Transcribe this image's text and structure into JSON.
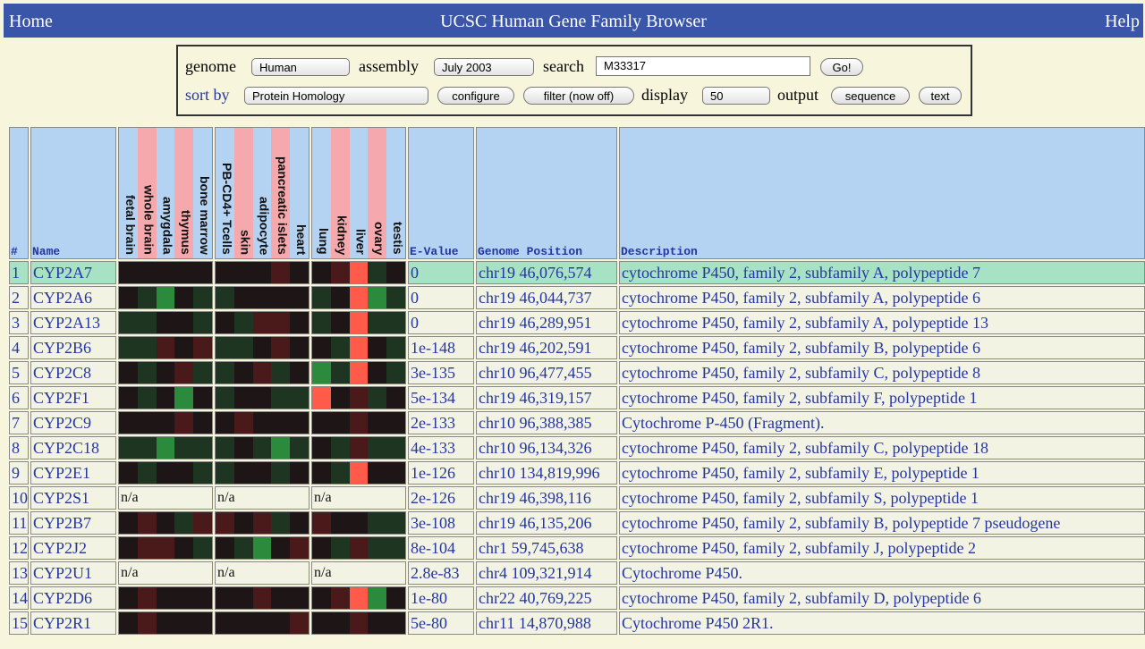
{
  "header": {
    "home": "Home",
    "title": "UCSC Human Gene Family Browser",
    "help": "Help"
  },
  "controls": {
    "genome_label": "genome",
    "genome": "Human",
    "assembly_label": "assembly",
    "assembly": "July 2003",
    "search_label": "search",
    "search": "M33317",
    "go": "Go!",
    "sort_label": "sort by",
    "sort": "Protein Homology",
    "configure": "configure",
    "filter": "filter (now off)",
    "display_label": "display",
    "display": "50",
    "output_label": "output",
    "sequence": "sequence",
    "text": "text"
  },
  "table": {
    "columns": [
      "#",
      "Name",
      "E-Value",
      "Genome Position",
      "Description"
    ],
    "tissues": [
      [
        "fetal brain",
        "whole brain",
        "amygdala",
        "thymus",
        "bone marrow"
      ],
      [
        "PB-CD4+ Tcells",
        "skin",
        "adipocyte",
        "pancreatic islets",
        "heart"
      ],
      [
        "lung",
        "kidney",
        "liver",
        "ovary",
        "testis"
      ]
    ],
    "rows": [
      {
        "num": "1",
        "name": "CYP2A7",
        "expression": [
          [
            "#1e1616",
            "#1e1616",
            "#1e1616",
            "#1e1616",
            "#1e1616"
          ],
          [
            "#1e1616",
            "#1e1616",
            "#1e1616",
            "#4a1a1a",
            "#1e1616"
          ],
          [
            "#1e1616",
            "#4a1a1a",
            "#ff5a4a",
            "#1e3522",
            "#1e1616"
          ]
        ],
        "evalue": "0",
        "position": "chr19 46,076,574",
        "description": "cytochrome P450, family 2, subfamily A, polypeptide 7"
      },
      {
        "num": "2",
        "name": "CYP2A6",
        "expression": [
          [
            "#1e1616",
            "#1e3522",
            "#2c8a3c",
            "#1e1616",
            "#1e3522"
          ],
          [
            "#1e3522",
            "#1e1616",
            "#1e1616",
            "#1e1616",
            "#1e1616"
          ],
          [
            "#1e3522",
            "#1e1616",
            "#ff5a4a",
            "#2c8a3c",
            "#1e3522"
          ]
        ],
        "evalue": "0",
        "position": "chr19 46,044,737",
        "description": "cytochrome P450, family 2, subfamily A, polypeptide 6"
      },
      {
        "num": "3",
        "name": "CYP2A13",
        "expression": [
          [
            "#1e3522",
            "#1e3522",
            "#1e1616",
            "#1e1616",
            "#1e3522"
          ],
          [
            "#1e1616",
            "#1e3522",
            "#4a1a1a",
            "#4a1a1a",
            "#1e1616"
          ],
          [
            "#1e3522",
            "#1e1616",
            "#ff5a4a",
            "#1e3522",
            "#1e3522"
          ]
        ],
        "evalue": "0",
        "position": "chr19 46,289,951",
        "description": "cytochrome P450, family 2, subfamily A, polypeptide 13"
      },
      {
        "num": "4",
        "name": "CYP2B6",
        "expression": [
          [
            "#1e3522",
            "#1e3522",
            "#4a1a1a",
            "#1e1616",
            "#4a1a1a"
          ],
          [
            "#1e3522",
            "#1e3522",
            "#1e1616",
            "#4a1a1a",
            "#1e1616"
          ],
          [
            "#1e1616",
            "#1e3522",
            "#ff5a4a",
            "#1e1616",
            "#1e3522"
          ]
        ],
        "evalue": "1e-148",
        "position": "chr19 46,202,591",
        "description": "cytochrome P450, family 2, subfamily B, polypeptide 6"
      },
      {
        "num": "5",
        "name": "CYP2C8",
        "expression": [
          [
            "#1e1616",
            "#1e3522",
            "#1e1616",
            "#4a1a1a",
            "#1e3522"
          ],
          [
            "#1e3522",
            "#1e1616",
            "#4a1a1a",
            "#1e3522",
            "#1e1616"
          ],
          [
            "#2c8a3c",
            "#1e3522",
            "#ff5a4a",
            "#1e1616",
            "#1e3522"
          ]
        ],
        "evalue": "3e-135",
        "position": "chr10 96,477,455",
        "description": "cytochrome P450, family 2, subfamily C, polypeptide 8"
      },
      {
        "num": "6",
        "name": "CYP2F1",
        "expression": [
          [
            "#1e1616",
            "#1e3522",
            "#1e1616",
            "#2c8a3c",
            "#1e1616"
          ],
          [
            "#1e3522",
            "#1e1616",
            "#1e1616",
            "#1e3522",
            "#1e3522"
          ],
          [
            "#ff5a4a",
            "#1e1616",
            "#4a1a1a",
            "#1e3522",
            "#1e1616"
          ]
        ],
        "evalue": "5e-134",
        "position": "chr19 46,319,157",
        "description": "cytochrome P450, family 2, subfamily F, polypeptide 1"
      },
      {
        "num": "7",
        "name": "CYP2C9",
        "expression": [
          [
            "#1e1616",
            "#1e1616",
            "#1e1616",
            "#4a1a1a",
            "#1e1616"
          ],
          [
            "#1e1616",
            "#4a1a1a",
            "#1e1616",
            "#1e1616",
            "#1e1616"
          ],
          [
            "#1e1616",
            "#1e1616",
            "#4a1a1a",
            "#1e1616",
            "#1e1616"
          ]
        ],
        "evalue": "2e-133",
        "position": "chr10 96,388,385",
        "description": "Cytochrome P-450 (Fragment)."
      },
      {
        "num": "8",
        "name": "CYP2C18",
        "expression": [
          [
            "#1e3522",
            "#1e3522",
            "#2c8a3c",
            "#1e3522",
            "#1e3522"
          ],
          [
            "#1e3522",
            "#1e1616",
            "#1e3522",
            "#2c8a3c",
            "#1e3522"
          ],
          [
            "#1e1616",
            "#1e3522",
            "#4a1a1a",
            "#1e3522",
            "#1e3522"
          ]
        ],
        "evalue": "4e-133",
        "position": "chr10 96,134,326",
        "description": "cytochrome P450, family 2, subfamily C, polypeptide 18"
      },
      {
        "num": "9",
        "name": "CYP2E1",
        "expression": [
          [
            "#1e1616",
            "#1e3522",
            "#1e1616",
            "#1e1616",
            "#1e3522"
          ],
          [
            "#1e3522",
            "#1e1616",
            "#1e1616",
            "#1e3522",
            "#1e1616"
          ],
          [
            "#1e1616",
            "#1e3522",
            "#ff5a4a",
            "#1e1616",
            "#1e1616"
          ]
        ],
        "evalue": "1e-126",
        "position": "chr10 134,819,996",
        "description": "cytochrome P450, family 2, subfamily E, polypeptide 1"
      },
      {
        "num": "10",
        "name": "CYP2S1",
        "expression": [
          "n/a",
          "n/a",
          "n/a"
        ],
        "evalue": "2e-126",
        "position": "chr19 46,398,116",
        "description": "cytochrome P450, family 2, subfamily S, polypeptide 1"
      },
      {
        "num": "11",
        "name": "CYP2B7",
        "expression": [
          [
            "#1e1616",
            "#4a1a1a",
            "#1e1616",
            "#1e3522",
            "#4a1a1a"
          ],
          [
            "#4a1a1a",
            "#1e1616",
            "#4a1a1a",
            "#1e3522",
            "#1e1616"
          ],
          [
            "#4a1a1a",
            "#1e1616",
            "#1e1616",
            "#1e3522",
            "#1e3522"
          ]
        ],
        "evalue": "3e-108",
        "position": "chr19 46,135,206",
        "description": "cytochrome P450, family 2, subfamily B, polypeptide 7 pseudogene"
      },
      {
        "num": "12",
        "name": "CYP2J2",
        "expression": [
          [
            "#1e1616",
            "#4a1a1a",
            "#4a1a1a",
            "#1e1616",
            "#1e3522"
          ],
          [
            "#1e1616",
            "#1e3522",
            "#2c8a3c",
            "#1e1616",
            "#4a1a1a"
          ],
          [
            "#1e1616",
            "#1e3522",
            "#4a1a1a",
            "#1e3522",
            "#1e3522"
          ]
        ],
        "evalue": "8e-104",
        "position": "chr1 59,745,638",
        "description": "cytochrome P450, family 2, subfamily J, polypeptide 2"
      },
      {
        "num": "13",
        "name": "CYP2U1",
        "expression": [
          "n/a",
          "n/a",
          "n/a"
        ],
        "evalue": "2.8e-83",
        "position": "chr4 109,321,914",
        "description": "Cytochrome P450."
      },
      {
        "num": "14",
        "name": "CYP2D6",
        "expression": [
          [
            "#1e1616",
            "#4a1a1a",
            "#1e1616",
            "#1e1616",
            "#1e1616"
          ],
          [
            "#1e1616",
            "#1e1616",
            "#4a1a1a",
            "#1e1616",
            "#1e1616"
          ],
          [
            "#1e1616",
            "#4a1a1a",
            "#ff5a4a",
            "#2c8a3c",
            "#1e1616"
          ]
        ],
        "evalue": "1e-80",
        "position": "chr22 40,769,225",
        "description": "cytochrome P450, family 2, subfamily D, polypeptide 6"
      },
      {
        "num": "15",
        "name": "CYP2R1",
        "expression": [
          [
            "#1e1616",
            "#4a1a1a",
            "#1e1616",
            "#1e1616",
            "#1e1616"
          ],
          [
            "#1e1616",
            "#1e1616",
            "#1e1616",
            "#1e1616",
            "#4a1a1a"
          ],
          [
            "#1e1616",
            "#1e1616",
            "#4a1a1a",
            "#1e1616",
            "#1e1616"
          ]
        ],
        "evalue": "5e-80",
        "position": "chr11 14,870,988",
        "description": "Cytochrome P450 2R1."
      }
    ]
  }
}
